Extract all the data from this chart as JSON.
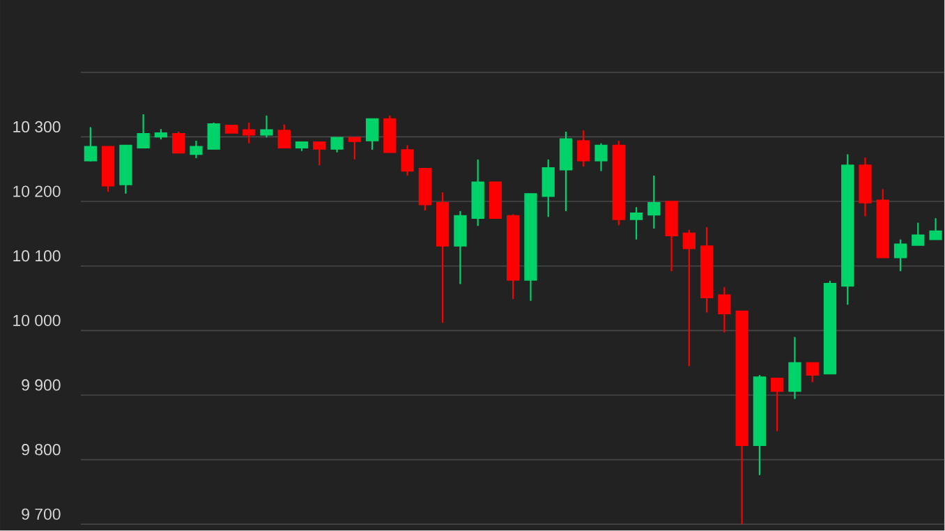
{
  "chart_data": {
    "type": "candlestick",
    "categories": [
      null,
      null,
      null,
      null,
      null,
      null,
      null,
      null,
      null,
      null,
      null,
      null,
      null,
      null,
      null,
      null,
      null,
      null,
      null,
      null,
      null,
      null,
      null,
      null,
      null,
      null,
      null,
      null,
      null,
      null,
      null,
      null,
      null,
      null,
      null,
      null,
      null,
      null,
      null,
      null,
      null,
      null,
      null,
      null,
      null,
      null,
      null,
      null,
      null
    ],
    "ohlc": [
      [
        10263,
        10315,
        10262,
        10285
      ],
      [
        10285,
        10285,
        10215,
        10224
      ],
      [
        10226,
        10287,
        10212,
        10287
      ],
      [
        10283,
        10335,
        10283,
        10305
      ],
      [
        10300,
        10312,
        10296,
        10306
      ],
      [
        10305,
        10308,
        10275,
        10275
      ],
      [
        10273,
        10294,
        10267,
        10285
      ],
      [
        10281,
        10322,
        10281,
        10320
      ],
      [
        10318,
        10318,
        10306,
        10306
      ],
      [
        10311,
        10322,
        10290,
        10303
      ],
      [
        10303,
        10333,
        10299,
        10311
      ],
      [
        10310,
        10319,
        10283,
        10283
      ],
      [
        10283,
        10292,
        10278,
        10292
      ],
      [
        10292,
        10292,
        10256,
        10281
      ],
      [
        10281,
        10299,
        10276,
        10299
      ],
      [
        10299,
        10299,
        10265,
        10293
      ],
      [
        10294,
        10328,
        10280,
        10328
      ],
      [
        10328,
        10333,
        10276,
        10276
      ],
      [
        10280,
        10287,
        10240,
        10247
      ],
      [
        10251,
        10251,
        10186,
        10195
      ],
      [
        10198,
        10214,
        10012,
        10131
      ],
      [
        10131,
        10185,
        10072,
        10178
      ],
      [
        10174,
        10265,
        10162,
        10230
      ],
      [
        10230,
        10230,
        10174,
        10174
      ],
      [
        10178,
        10180,
        10049,
        10078
      ],
      [
        10078,
        10212,
        10046,
        10212
      ],
      [
        10208,
        10265,
        10176,
        10252
      ],
      [
        10249,
        10308,
        10185,
        10297
      ],
      [
        10294,
        10310,
        10254,
        10263
      ],
      [
        10263,
        10290,
        10247,
        10287
      ],
      [
        10287,
        10294,
        10163,
        10172
      ],
      [
        10172,
        10191,
        10141,
        10182
      ],
      [
        10179,
        10240,
        10158,
        10198
      ],
      [
        10200,
        10200,
        10092,
        10147
      ],
      [
        10151,
        10156,
        9945,
        10127
      ],
      [
        10131,
        10160,
        10028,
        10051
      ],
      [
        10055,
        10067,
        9997,
        10026
      ],
      [
        10030,
        10030,
        9700,
        9822
      ],
      [
        9822,
        9931,
        9776,
        9928
      ],
      [
        9926,
        9926,
        9844,
        9906
      ],
      [
        9906,
        9990,
        9894,
        9950
      ],
      [
        9950,
        9950,
        9920,
        9931
      ],
      [
        9933,
        10077,
        9933,
        10073
      ],
      [
        10069,
        10273,
        10040,
        10256
      ],
      [
        10256,
        10268,
        10177,
        10198
      ],
      [
        10202,
        10219,
        10113,
        10113
      ],
      [
        10113,
        10141,
        10092,
        10134
      ],
      [
        10132,
        10167,
        10132,
        10148
      ],
      [
        10141,
        10174,
        10141,
        10154
      ]
    ],
    "colors": [
      "#00d26a",
      "#ff0000",
      "#00d26a",
      "#00d26a",
      "#00d26a",
      "#ff0000",
      "#00d26a",
      "#00d26a",
      "#ff0000",
      "#ff0000",
      "#00d26a",
      "#ff0000",
      "#00d26a",
      "#ff0000",
      "#00d26a",
      "#ff0000",
      "#00d26a",
      "#ff0000",
      "#ff0000",
      "#ff0000",
      "#ff0000",
      "#00d26a",
      "#00d26a",
      "#ff0000",
      "#ff0000",
      "#00d26a",
      "#00d26a",
      "#00d26a",
      "#ff0000",
      "#00d26a",
      "#ff0000",
      "#00d26a",
      "#00d26a",
      "#ff0000",
      "#ff0000",
      "#ff0000",
      "#ff0000",
      "#ff0000",
      "#00d26a",
      "#ff0000",
      "#00d26a",
      "#ff0000",
      "#00d26a",
      "#00d26a",
      "#ff0000",
      "#ff0000",
      "#00d26a",
      "#00d26a",
      "#00d26a"
    ],
    "ylim": [
      9690,
      10512
    ],
    "yticks": [
      {
        "value": 9700,
        "label": "9 700"
      },
      {
        "value": 9800,
        "label": "9 800"
      },
      {
        "value": 9900,
        "label": "9 900"
      },
      {
        "value": 10000,
        "label": "10 000"
      },
      {
        "value": 10100,
        "label": "10 100"
      },
      {
        "value": 10200,
        "label": "10 200"
      },
      {
        "value": 10300,
        "label": "10 300"
      },
      {
        "value": 10400,
        "label": null
      }
    ],
    "grid": "y"
  }
}
